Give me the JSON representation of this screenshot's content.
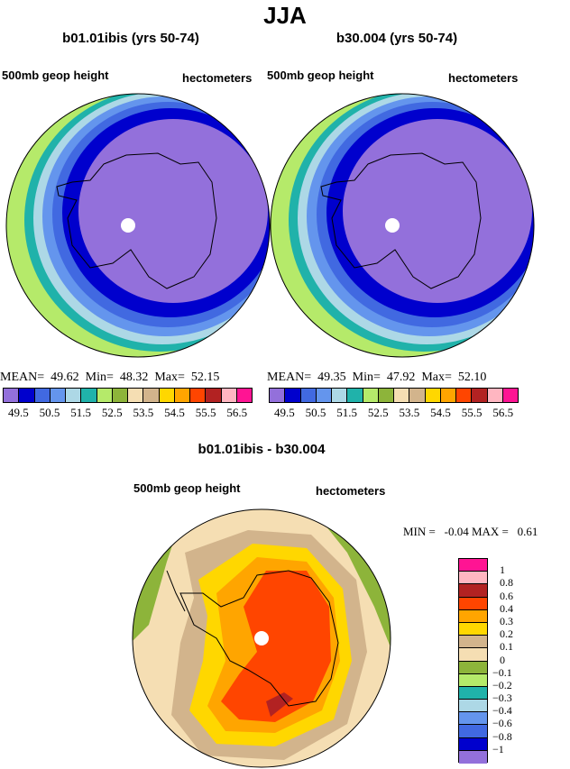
{
  "title": "JJA",
  "panels": [
    {
      "name": "b01.01ibis (yrs 50-74)",
      "field": "500mb geop height",
      "units": "hectometers",
      "stats": {
        "mean_label": "MEAN=",
        "mean": "49.62",
        "min_label": "Min=",
        "min": "48.32",
        "max_label": "Max=",
        "max": "52.15"
      }
    },
    {
      "name": "b30.004 (yrs 50-74)",
      "field": "500mb geop height",
      "units": "hectometers",
      "stats": {
        "mean_label": "MEAN=",
        "mean": "49.35",
        "min_label": "Min=",
        "min": "47.92",
        "max_label": "Max=",
        "max": "52.10"
      }
    }
  ],
  "colorbar_top": {
    "colors": [
      "#9370db",
      "#0000cd",
      "#4169e1",
      "#6495ed",
      "#add8e6",
      "#20b2aa",
      "#b5ea6a",
      "#8db43a",
      "#f5deb3",
      "#d2b48c",
      "#ffd700",
      "#ffa500",
      "#ff4500",
      "#b22222",
      "#ffb6c1",
      "#ff1493"
    ],
    "labels": [
      "49.5",
      "50.5",
      "51.5",
      "52.5",
      "53.5",
      "54.5",
      "55.5",
      "56.5"
    ]
  },
  "difference": {
    "title": "b01.01ibis - b30.004",
    "field": "500mb geop height",
    "units": "hectometers",
    "min_label": "MIN =",
    "min": "-0.04",
    "max_label": "MAX =",
    "max": "0.61",
    "colorbar": {
      "colors_top_to_bottom": [
        "#ff1493",
        "#ffb6c1",
        "#b22222",
        "#ff4500",
        "#ffa500",
        "#ffd700",
        "#d2b48c",
        "#f5deb3",
        "#8db43a",
        "#b5ea6a",
        "#20b2aa",
        "#add8e6",
        "#6495ed",
        "#4169e1",
        "#0000cd",
        "#9370db"
      ],
      "labels_top_to_bottom": [
        "1",
        "0.8",
        "0.6",
        "0.4",
        "0.3",
        "0.2",
        "0.1",
        "0",
        "−0.1",
        "−0.2",
        "−0.3",
        "−0.4",
        "−0.6",
        "−0.8",
        "−1"
      ]
    }
  }
}
